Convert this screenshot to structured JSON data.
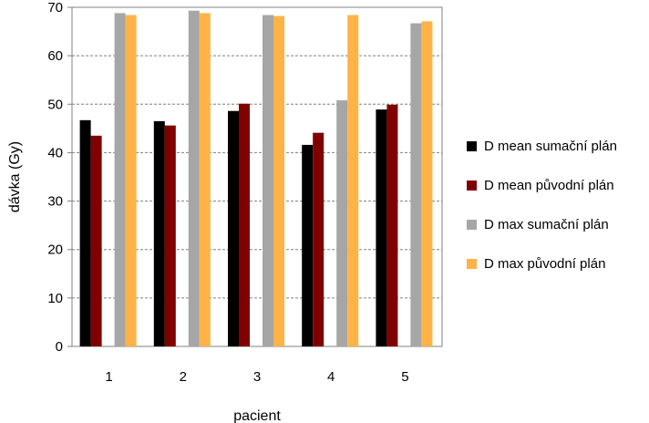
{
  "chart_data": {
    "type": "bar",
    "categories": [
      "1",
      "2",
      "3",
      "4",
      "5"
    ],
    "series": [
      {
        "name": "D mean sumační plán",
        "color": "#000000",
        "values": [
          46.7,
          46.5,
          48.6,
          41.6,
          48.9
        ]
      },
      {
        "name": "D mean původní plán",
        "color": "#800000",
        "values": [
          43.5,
          45.6,
          50.1,
          44.1,
          49.9
        ]
      },
      {
        "name": "D max sumační plán",
        "color": "#a6a6a6",
        "values": [
          68.8,
          69.3,
          68.4,
          50.8,
          66.7
        ]
      },
      {
        "name": "D max původní plán",
        "color": "#ffb347",
        "values": [
          68.4,
          68.8,
          68.2,
          68.4,
          67.1
        ]
      }
    ],
    "title": "",
    "xlabel": "pacient",
    "ylabel": "dávka (Gy)",
    "ylim": [
      0,
      70
    ],
    "yticks": [
      0,
      10,
      20,
      30,
      40,
      50,
      60,
      70
    ],
    "grid": "horizontal dashed",
    "legend_position": "right"
  }
}
